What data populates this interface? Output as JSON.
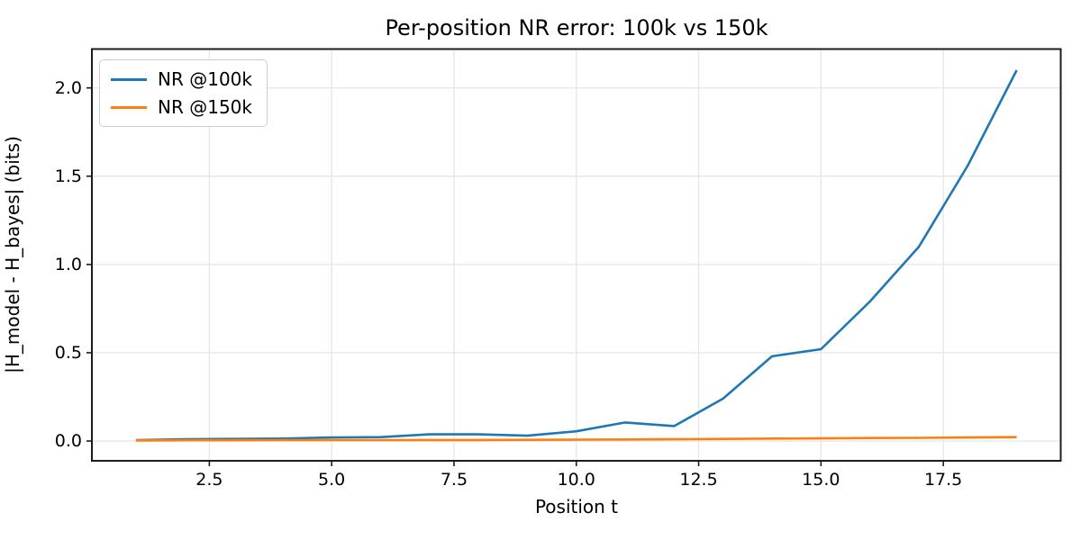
{
  "chart_data": {
    "type": "line",
    "title": "Per-position NR error: 100k vs 150k",
    "xlabel": "Position t",
    "ylabel": "|H_model - H_bayes| (bits)",
    "x": [
      1,
      2,
      3,
      4,
      5,
      6,
      7,
      8,
      9,
      10,
      11,
      12,
      13,
      14,
      15,
      16,
      17,
      18,
      19
    ],
    "series": [
      {
        "name": "NR @100k",
        "color": "#1f77b4",
        "values": [
          0.005,
          0.01,
          0.012,
          0.014,
          0.02,
          0.022,
          0.038,
          0.038,
          0.03,
          0.055,
          0.105,
          0.085,
          0.24,
          0.48,
          0.52,
          0.79,
          1.1,
          1.56,
          2.1
        ]
      },
      {
        "name": "NR @150k",
        "color": "#ff7f0e",
        "values": [
          0.003,
          0.004,
          0.004,
          0.005,
          0.005,
          0.005,
          0.006,
          0.006,
          0.007,
          0.008,
          0.009,
          0.01,
          0.012,
          0.014,
          0.015,
          0.017,
          0.018,
          0.02,
          0.022
        ]
      }
    ],
    "xticks": {
      "values": [
        2.5,
        5.0,
        7.5,
        10.0,
        12.5,
        15.0,
        17.5
      ],
      "labels": [
        "2.5",
        "5.0",
        "7.5",
        "10.0",
        "12.5",
        "15.0",
        "17.5"
      ]
    },
    "yticks": {
      "values": [
        0.0,
        0.5,
        1.0,
        1.5,
        2.0
      ],
      "labels": [
        "0.0",
        "0.5",
        "1.0",
        "1.5",
        "2.0"
      ]
    },
    "xlim": [
      0.1,
      19.9
    ],
    "ylim": [
      -0.112,
      2.22
    ],
    "grid": true,
    "legend_position": "upper left",
    "colors": {
      "grid": "#e7e7e7",
      "spine": "#1c1c1c",
      "tick": "#1c1c1c",
      "text": "#000000",
      "background": "#ffffff"
    }
  }
}
